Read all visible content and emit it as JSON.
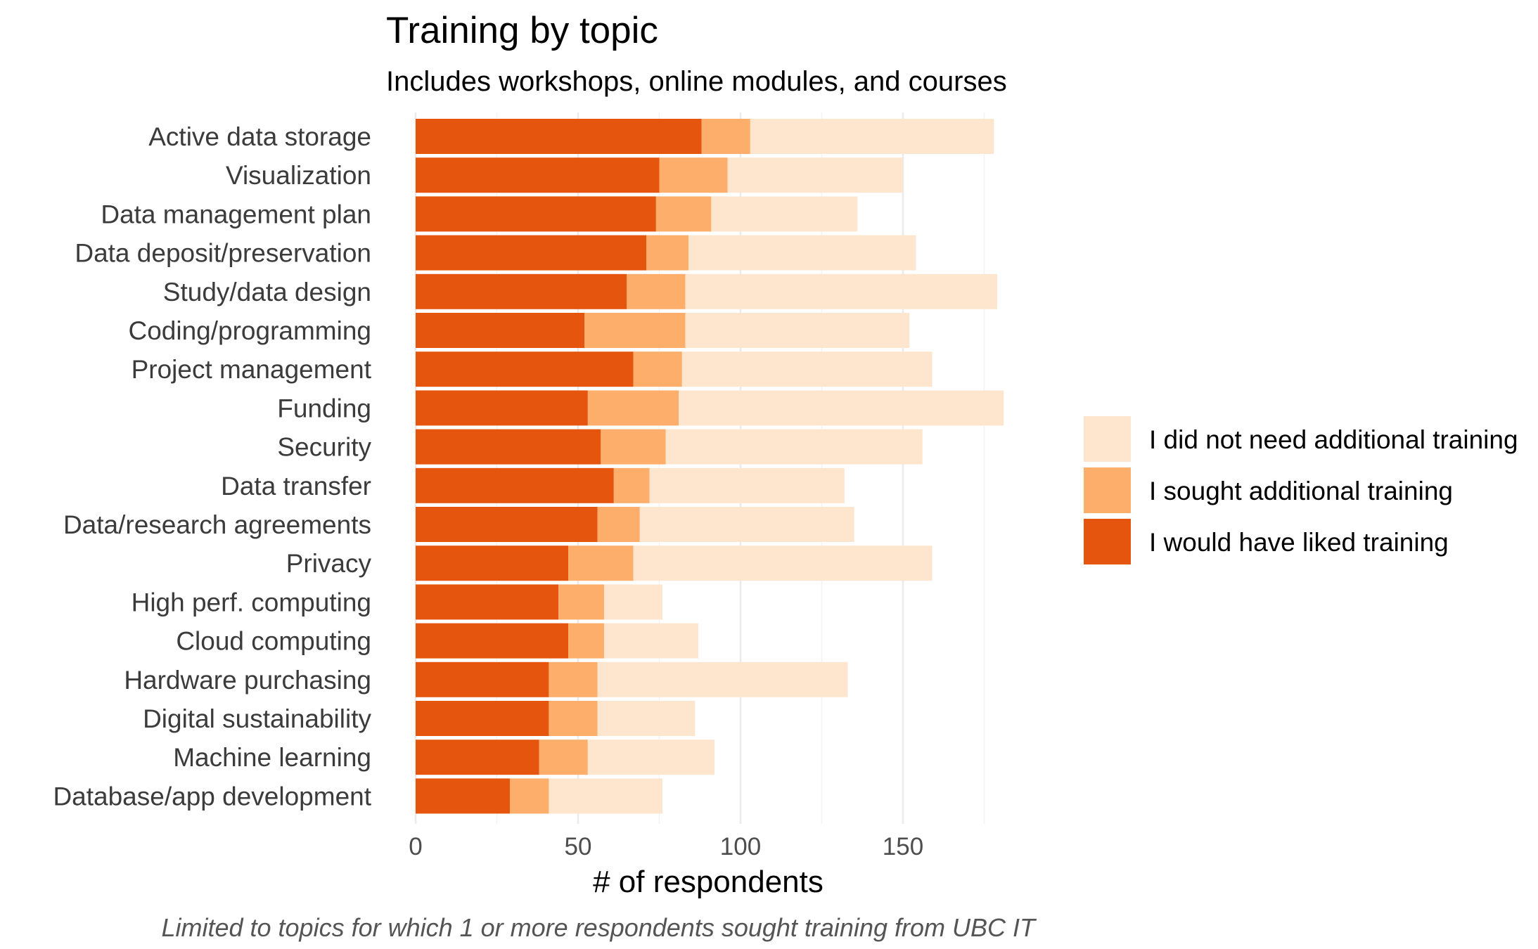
{
  "chart_data": {
    "type": "bar",
    "orientation": "horizontal",
    "stacked": true,
    "title": "Training by topic",
    "subtitle": "Includes workshops, online modules, and courses",
    "xlabel": "# of respondents",
    "ylabel": "",
    "caption": "Limited to topics for which 1 or more respondents sought training from UBC IT",
    "xlim": [
      0,
      182
    ],
    "xticks": [
      0,
      50,
      100,
      150
    ],
    "grid": true,
    "legend_position": "right",
    "categories": [
      "Active data storage",
      "Visualization",
      "Data management plan",
      "Data deposit/preservation",
      "Study/data design",
      "Coding/programming",
      "Project management",
      "Funding",
      "Security",
      "Data transfer",
      "Data/research agreements",
      "Privacy",
      "High perf. computing",
      "Cloud computing",
      "Hardware purchasing",
      "Digital sustainability",
      "Machine learning",
      "Database/app development"
    ],
    "series": [
      {
        "name": "I would have liked training",
        "color": "#e6550d",
        "values": [
          88,
          75,
          74,
          71,
          65,
          52,
          67,
          53,
          57,
          61,
          56,
          47,
          44,
          47,
          41,
          41,
          38,
          29
        ]
      },
      {
        "name": "I sought additional training",
        "color": "#fdae6b",
        "values": [
          15,
          21,
          17,
          13,
          18,
          31,
          15,
          28,
          20,
          11,
          13,
          20,
          14,
          11,
          15,
          15,
          15,
          12
        ]
      },
      {
        "name": "I did not need additional training",
        "color": "#fee6ce",
        "values": [
          75,
          54,
          45,
          70,
          96,
          69,
          77,
          100,
          79,
          60,
          66,
          92,
          18,
          29,
          77,
          30,
          39,
          35
        ]
      }
    ],
    "legend": [
      {
        "label": "I did not need additional training",
        "color": "#fee6ce"
      },
      {
        "label": "I sought additional training",
        "color": "#fdae6b"
      },
      {
        "label": "I would have liked training",
        "color": "#e6550d"
      }
    ]
  }
}
